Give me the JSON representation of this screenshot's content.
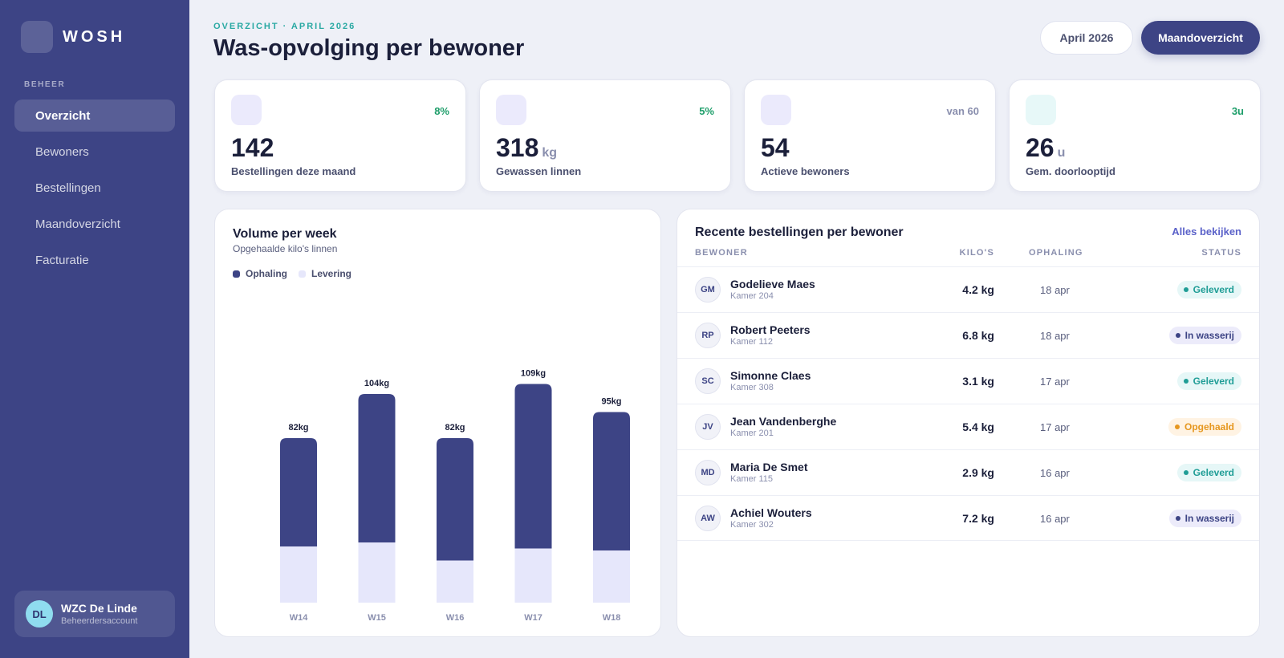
{
  "brand": {
    "name": "WOSH"
  },
  "sidebar": {
    "section_label": "BEHEER",
    "items": [
      {
        "label": "Overzicht",
        "active": true
      },
      {
        "label": "Bewoners"
      },
      {
        "label": "Bestellingen"
      },
      {
        "label": "Maandoverzicht"
      },
      {
        "label": "Facturatie"
      }
    ],
    "account": {
      "initials": "DL",
      "name": "WZC De Linde",
      "role": "Beheerdersaccount"
    }
  },
  "header": {
    "eyebrow": "OVERZICHT · APRIL 2026",
    "title": "Was-opvolging per bewoner",
    "month_button": "April 2026",
    "overview_button": "Maandoverzicht"
  },
  "stats": [
    {
      "value": "142",
      "unit": "",
      "label": "Bestellingen deze maand",
      "delta": "8%",
      "delta_color": "#1e9e6a",
      "icon_bg": "#ebeafc"
    },
    {
      "value": "318",
      "unit": "kg",
      "label": "Gewassen linnen",
      "delta": "5%",
      "delta_color": "#1e9e6a",
      "icon_bg": "#ebeafc"
    },
    {
      "value": "54",
      "unit": "",
      "label": "Actieve bewoners",
      "delta": "van 60",
      "delta_color": "#8a8fae",
      "icon_bg": "#ebeafc"
    },
    {
      "value": "26",
      "unit": "u",
      "label": "Gem. doorlooptijd",
      "delta": "3u",
      "delta_color": "#1e9e6a",
      "icon_bg": "#e7f8f8"
    }
  ],
  "chart_card": {
    "title": "Volume per week",
    "subtitle": "Opgehaalde kilo's linnen",
    "legend": {
      "ophaling": "Ophaling",
      "levering": "Levering"
    }
  },
  "chart_data": {
    "type": "bar",
    "stacked": true,
    "categories": [
      "W14",
      "W15",
      "W16",
      "W17",
      "W18"
    ],
    "totals": [
      82,
      104,
      82,
      109,
      95
    ],
    "total_labels": [
      "82kg",
      "104kg",
      "82kg",
      "109kg",
      "95kg"
    ],
    "series": [
      {
        "name": "Ophaling",
        "color": "#3d4485",
        "values": [
          54,
          74,
          61,
          82,
          69
        ]
      },
      {
        "name": "Levering",
        "color": "#e6e7fb",
        "values": [
          28,
          30,
          21,
          27,
          26
        ]
      }
    ],
    "legend_position": "top-left",
    "grid": false
  },
  "orders": {
    "title": "Recente bestellingen per bewoner",
    "see_all": "Alles bekijken",
    "columns": {
      "resident": "BEWONER",
      "kilos": "KILO'S",
      "pickup": "OPHALING",
      "status": "STATUS"
    },
    "rows": [
      {
        "initials": "GM",
        "name": "Godelieve Maes",
        "room": "Kamer 204",
        "kg": "4.2 kg",
        "date": "18 apr",
        "status": "Geleverd",
        "status_type": "delivered"
      },
      {
        "initials": "RP",
        "name": "Robert Peeters",
        "room": "Kamer 112",
        "kg": "6.8 kg",
        "date": "18 apr",
        "status": "In wasserij",
        "status_type": "laundry"
      },
      {
        "initials": "SC",
        "name": "Simonne Claes",
        "room": "Kamer 308",
        "kg": "3.1 kg",
        "date": "17 apr",
        "status": "Geleverd",
        "status_type": "delivered"
      },
      {
        "initials": "JV",
        "name": "Jean Vandenberghe",
        "room": "Kamer 201",
        "kg": "5.4 kg",
        "date": "17 apr",
        "status": "Opgehaald",
        "status_type": "picked"
      },
      {
        "initials": "MD",
        "name": "Maria De Smet",
        "room": "Kamer 115",
        "kg": "2.9 kg",
        "date": "16 apr",
        "status": "Geleverd",
        "status_type": "delivered"
      },
      {
        "initials": "AW",
        "name": "Achiel Wouters",
        "room": "Kamer 302",
        "kg": "7.2 kg",
        "date": "16 apr",
        "status": "In wasserij",
        "status_type": "laundry"
      }
    ],
    "status_colors": {
      "delivered": {
        "bg": "#e6f7f7",
        "fg": "#1f9d96"
      },
      "laundry": {
        "bg": "#ecebfa",
        "fg": "#3d4485"
      },
      "picked": {
        "bg": "#fff3e3",
        "fg": "#e6971f"
      }
    }
  }
}
